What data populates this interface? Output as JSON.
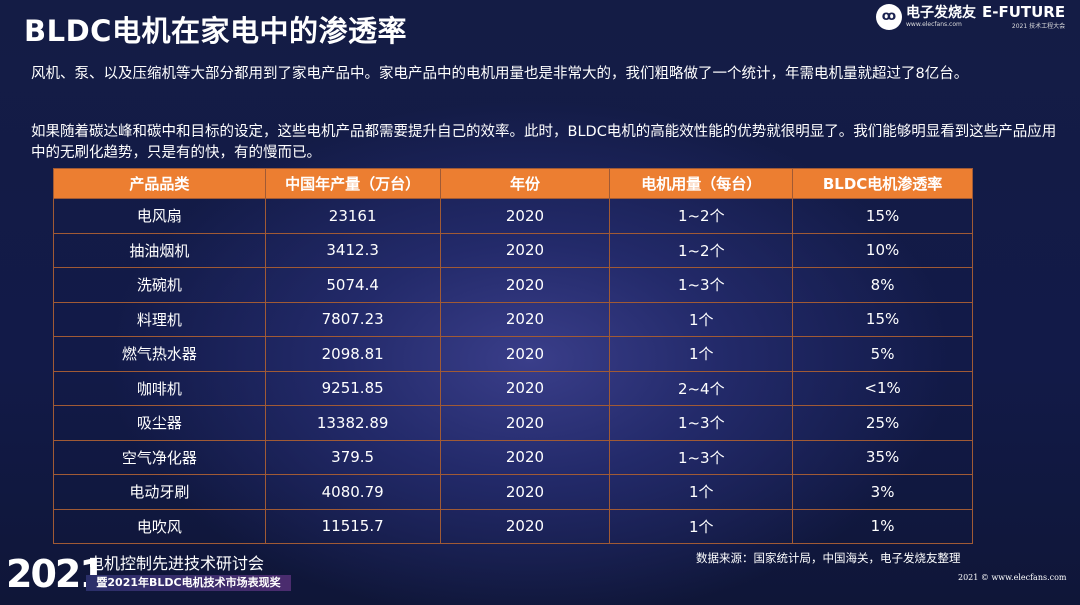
{
  "title": "BLDC电机在家电中的渗透率",
  "logos": {
    "elecfans_name": "电子发烧友",
    "elecfans_url": "www.elecfans.com",
    "efuture_name": "E-FUTURE",
    "efuture_sub": "2021 技术工程大会"
  },
  "paragraphs": [
    "风机、泵、以及压缩机等大部分都用到了家电产品中。家电产品中的电机用量也是非常大的，我们粗略做了一个统计，年需电机量就超过了8亿台。",
    "如果随着碳达峰和碳中和目标的设定，这些电机产品都需要提升自己的效率。此时，BLDC电机的高能效性能的优势就很明显了。我们能够明显看到这些产品应用中的无刷化趋势，只是有的快，有的慢而已。"
  ],
  "table": {
    "headers": [
      "产品品类",
      "中国年产量（万台）",
      "年份",
      "电机用量（每台）",
      "BLDC电机渗透率"
    ],
    "rows": [
      [
        "电风扇",
        "23161",
        "2020",
        "1~2个",
        "15%"
      ],
      [
        "抽油烟机",
        "3412.3",
        "2020",
        "1~2个",
        "10%"
      ],
      [
        "洗碗机",
        "5074.4",
        "2020",
        "1~3个",
        "8%"
      ],
      [
        "料理机",
        "7807.23",
        "2020",
        "1个",
        "15%"
      ],
      [
        "燃气热水器",
        "2098.81",
        "2020",
        "1个",
        "5%"
      ],
      [
        "咖啡机",
        "9251.85",
        "2020",
        "2~4个",
        "<1%"
      ],
      [
        "吸尘器",
        "13382.89",
        "2020",
        "1~3个",
        "25%"
      ],
      [
        "空气净化器",
        "379.5",
        "2020",
        "1~3个",
        "35%"
      ],
      [
        "电动牙刷",
        "4080.79",
        "2020",
        "1个",
        "3%"
      ],
      [
        "电吹风",
        "11515.7",
        "2020",
        "1个",
        "1%"
      ]
    ]
  },
  "source": "数据来源：国家统计局，中国海关，电子发烧友整理",
  "copyright": "2021 © www.elecfans.com",
  "badge": {
    "year": "2021",
    "line1": "电机控制先进技术研讨会",
    "line2": "暨2021年BLDC电机技术市场表现奖"
  },
  "colors": {
    "header": "#ec7e31",
    "background": "#141c45"
  }
}
